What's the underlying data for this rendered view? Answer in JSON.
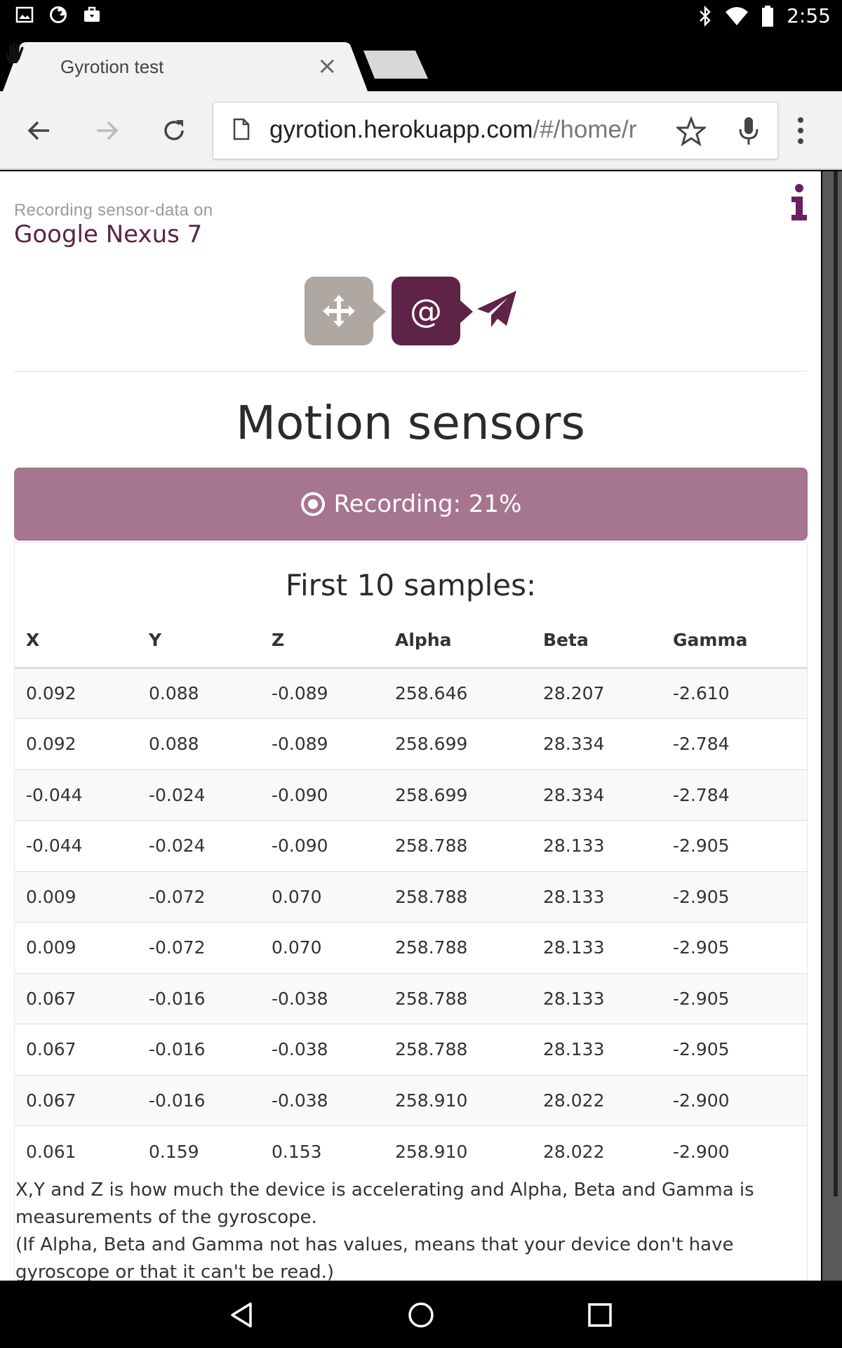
{
  "status_bar": {
    "time": "2:55",
    "icons_left": [
      "gallery-icon",
      "firefox-icon",
      "briefcase-icon"
    ],
    "icons_right": [
      "bluetooth-icon",
      "wifi-icon",
      "battery-icon"
    ]
  },
  "browser": {
    "tab_title": "Gyrotion test",
    "close_glyph": "×",
    "url_host": "gyrotion.herokuapp.com",
    "url_path": "/#/home/r"
  },
  "page": {
    "recording_label": "Recording sensor-data on",
    "device_name": "Google Nexus 7",
    "at_glyph": "@",
    "title": "Motion sensors",
    "record_button_label": "Recording: 21%",
    "record_progress_percent": 21,
    "table_title": "First 10 samples:",
    "table": {
      "headers": [
        "X",
        "Y",
        "Z",
        "Alpha",
        "Beta",
        "Gamma"
      ],
      "rows": [
        [
          "0.092",
          "0.088",
          "-0.089",
          "258.646",
          "28.207",
          "-2.610"
        ],
        [
          "0.092",
          "0.088",
          "-0.089",
          "258.699",
          "28.334",
          "-2.784"
        ],
        [
          "-0.044",
          "-0.024",
          "-0.090",
          "258.699",
          "28.334",
          "-2.784"
        ],
        [
          "-0.044",
          "-0.024",
          "-0.090",
          "258.788",
          "28.133",
          "-2.905"
        ],
        [
          "0.009",
          "-0.072",
          "0.070",
          "258.788",
          "28.133",
          "-2.905"
        ],
        [
          "0.009",
          "-0.072",
          "0.070",
          "258.788",
          "28.133",
          "-2.905"
        ],
        [
          "0.067",
          "-0.016",
          "-0.038",
          "258.788",
          "28.133",
          "-2.905"
        ],
        [
          "0.067",
          "-0.016",
          "-0.038",
          "258.788",
          "28.133",
          "-2.905"
        ],
        [
          "0.067",
          "-0.016",
          "-0.038",
          "258.910",
          "28.022",
          "-2.900"
        ],
        [
          "0.061",
          "0.159",
          "0.153",
          "258.910",
          "28.022",
          "-2.900"
        ]
      ]
    },
    "note_line1": "X,Y and Z is how much the device is accelerating and Alpha, Beta and Gamma is measurements of the gyroscope.",
    "note_line2": "(If Alpha, Beta and Gamma not has values, means that your device don't have gyroscope or that it can't be read.)"
  },
  "colors": {
    "brand": "#5f2348",
    "record_button": "#a6758f",
    "step_grey": "#aea7a2"
  }
}
